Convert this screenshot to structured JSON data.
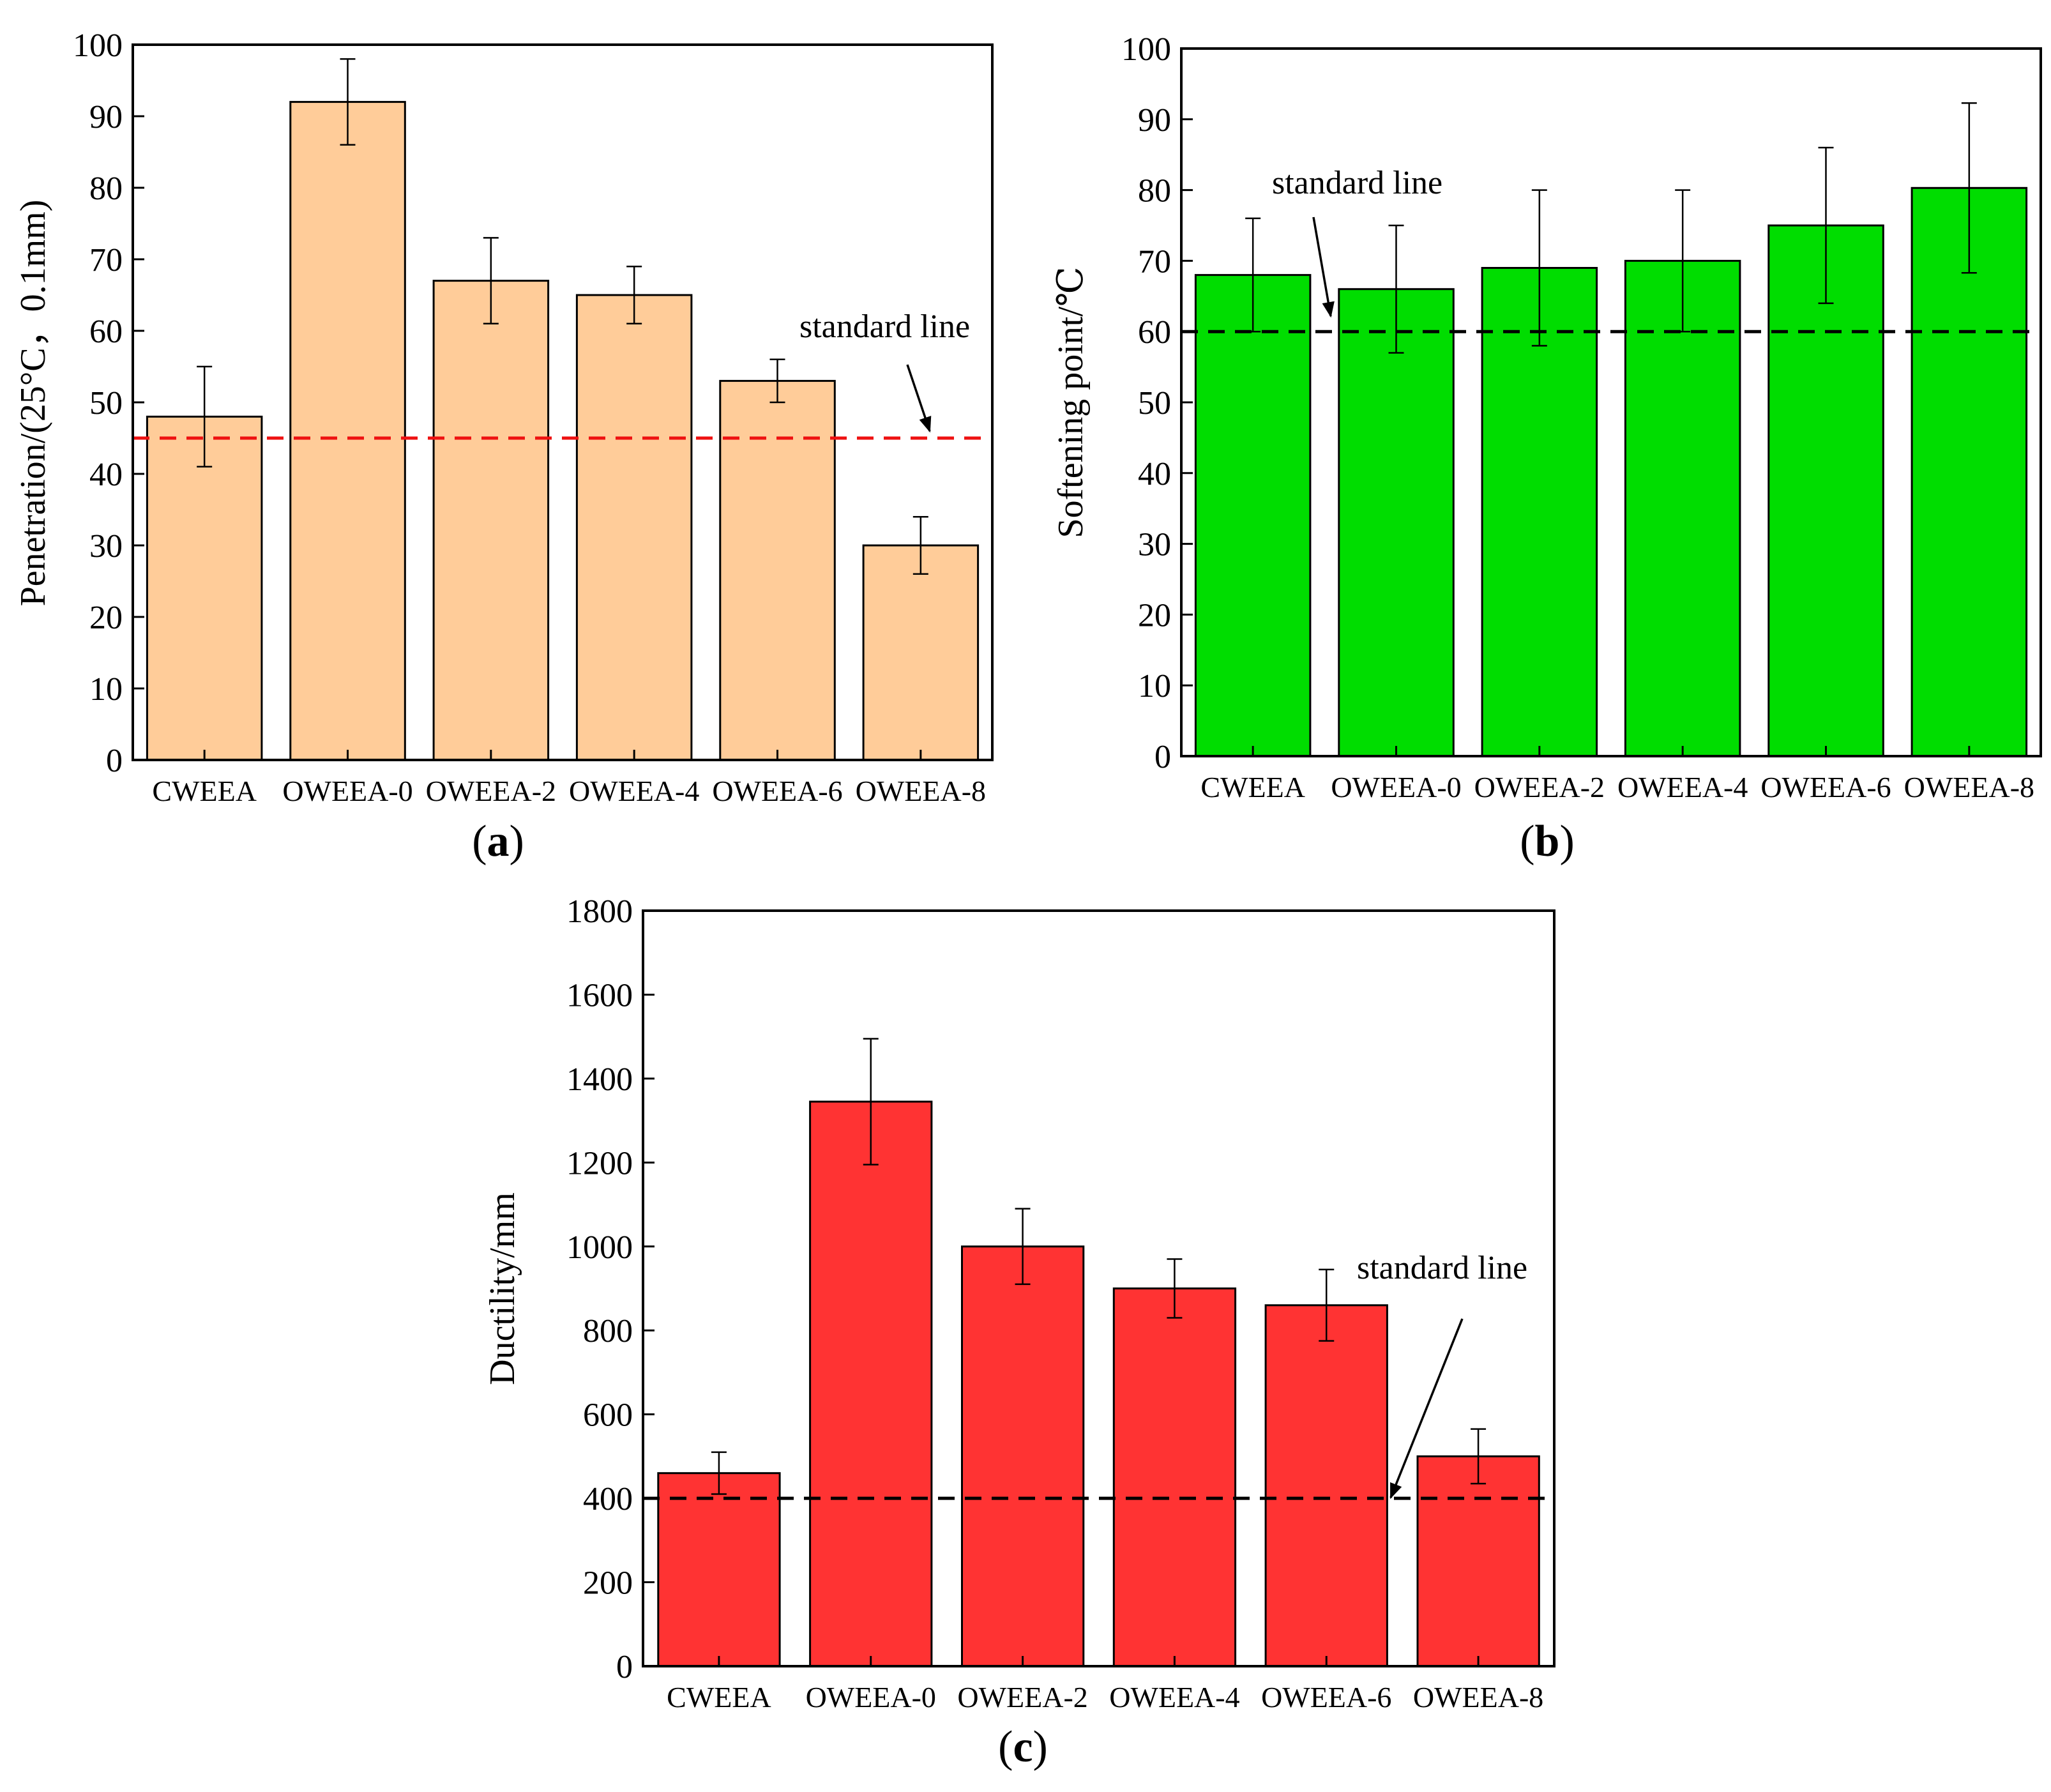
{
  "chart_data": [
    {
      "type": "bar",
      "panel_label": "(a)",
      "panel_letter": "a",
      "title": "",
      "xlabel": "",
      "ylabel": "Penetration/(25°C，0.1mm)",
      "ylim": [
        0,
        100
      ],
      "yticks": [
        "0",
        "10",
        "20",
        "30",
        "40",
        "50",
        "60",
        "70",
        "80",
        "90",
        "100"
      ],
      "categories": [
        "CWEEA",
        "OWEEA-0",
        "OWEEA-2",
        "OWEEA-4",
        "OWEEA-6",
        "OWEEA-8"
      ],
      "values": [
        48,
        92,
        67,
        65,
        53,
        30
      ],
      "errors": [
        7,
        6,
        6,
        4,
        3,
        4
      ],
      "bar_color": "#FFCC99",
      "standard_line": {
        "value": 45,
        "color": "#EE1111",
        "label": "standard line"
      }
    },
    {
      "type": "bar",
      "panel_label": "(b)",
      "panel_letter": "b",
      "title": "",
      "xlabel": "",
      "ylabel": "Softening point/℃",
      "ylim": [
        0,
        100
      ],
      "yticks": [
        "0",
        "10",
        "20",
        "30",
        "40",
        "50",
        "60",
        "70",
        "80",
        "90",
        "100"
      ],
      "categories": [
        "CWEEA",
        "OWEEA-0",
        "OWEEA-2",
        "OWEEA-4",
        "OWEEA-6",
        "OWEEA-8"
      ],
      "values": [
        68,
        66,
        69,
        70,
        75,
        80.3
      ],
      "errors": [
        8,
        9,
        11,
        10,
        11,
        12
      ],
      "bar_color": "#00DD00",
      "standard_line": {
        "value": 60,
        "color": "#000000",
        "label": "standard line"
      }
    },
    {
      "type": "bar",
      "panel_label": "(c)",
      "panel_letter": "c",
      "title": "",
      "xlabel": "",
      "ylabel": "Ductility/mm",
      "ylim": [
        0,
        1800
      ],
      "yticks": [
        "0",
        "200",
        "400",
        "600",
        "800",
        "1000",
        "1200",
        "1400",
        "1600",
        "1800"
      ],
      "categories": [
        "CWEEA",
        "OWEEA-0",
        "OWEEA-2",
        "OWEEA-4",
        "OWEEA-6",
        "OWEEA-8"
      ],
      "values": [
        460,
        1345,
        1000,
        900,
        860,
        500
      ],
      "errors": [
        50,
        150,
        90,
        70,
        85,
        65
      ],
      "bar_color": "#FF3333",
      "standard_line": {
        "value": 400,
        "color": "#000000",
        "label": "standard line"
      }
    }
  ]
}
